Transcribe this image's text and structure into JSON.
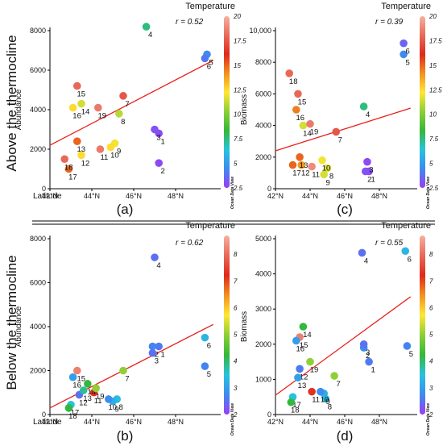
{
  "row_labels": {
    "top": "Above the thermocline",
    "bottom": "Below the thermocline"
  },
  "colors": {
    "regression_line": "#e8211b",
    "colormap_stops": [
      "#9b3df5",
      "#3d8af0",
      "#27c3dd",
      "#34b837",
      "#8ccf36",
      "#ffe733",
      "#f2901f",
      "#df2a1a",
      "#e86a5a",
      "#f5b1a0"
    ]
  },
  "watermark": "Ocean Data View",
  "chart_data": [
    {
      "id": "a",
      "type": "scatter",
      "panel_letter": "(a)",
      "xlabel": "Latitude",
      "ylabel": "Abundance",
      "xlim": [
        42,
        50
      ],
      "ylim": [
        0,
        8000
      ],
      "xticks": [
        {
          "v": 42,
          "label": "42°N"
        },
        {
          "v": 44,
          "label": "44°N"
        },
        {
          "v": 46,
          "label": "46°N"
        },
        {
          "v": 48,
          "label": "48°N"
        }
      ],
      "yticks": [
        {
          "v": 0,
          "label": "0"
        },
        {
          "v": 2000,
          "label": "2000"
        },
        {
          "v": 4000,
          "label": "4000"
        },
        {
          "v": 6000,
          "label": "6000"
        },
        {
          "v": 8000,
          "label": "8000"
        }
      ],
      "r_text": "r = 0.52",
      "trend": {
        "x": [
          42,
          49.8
        ],
        "y": [
          2200,
          6500
        ]
      },
      "colorbar": {
        "title": "Temperature",
        "min": 2.5,
        "max": 20,
        "ticks": [
          {
            "v": 20,
            "label": "20"
          },
          {
            "v": 17.5,
            "label": "17.5"
          },
          {
            "v": 15,
            "label": "15"
          },
          {
            "v": 12.5,
            "label": "12.5"
          },
          {
            "v": 10,
            "label": "10"
          },
          {
            "v": 7.5,
            "label": "7.5"
          },
          {
            "v": 5,
            "label": "5"
          },
          {
            "v": 2.5,
            "label": "2.5"
          }
        ]
      },
      "points": [
        {
          "label": "1",
          "x": 47.2,
          "y": 2800,
          "t": 2.8
        },
        {
          "label": "2",
          "x": 47.2,
          "y": 1300,
          "t": 2.8
        },
        {
          "label": "3",
          "x": 47.0,
          "y": 3000,
          "t": 3.0
        },
        {
          "label": "4",
          "x": 46.6,
          "y": 8200,
          "t": 7.5
        },
        {
          "label": "5",
          "x": 49.5,
          "y": 6800,
          "t": 4.5
        },
        {
          "label": "6",
          "x": 49.4,
          "y": 6600,
          "t": 4.0
        },
        {
          "label": "7",
          "x": 45.5,
          "y": 4700,
          "t": 17.5
        },
        {
          "label": "8",
          "x": 45.3,
          "y": 3800,
          "t": 11.0
        },
        {
          "label": "9",
          "x": 45.1,
          "y": 2300,
          "t": 12.0
        },
        {
          "label": "10",
          "x": 44.9,
          "y": 2100,
          "t": 12.5
        },
        {
          "label": "11",
          "x": 44.4,
          "y": 2000,
          "t": 18.5
        },
        {
          "label": "12",
          "x": 43.5,
          "y": 1700,
          "t": 12.5
        },
        {
          "label": "13",
          "x": 43.3,
          "y": 2400,
          "t": 15.0
        },
        {
          "label": "14",
          "x": 43.5,
          "y": 4300,
          "t": 11.5
        },
        {
          "label": "15",
          "x": 43.3,
          "y": 5200,
          "t": 18.0
        },
        {
          "label": "16",
          "x": 43.1,
          "y": 4100,
          "t": 12.5
        },
        {
          "label": "17",
          "x": 42.9,
          "y": 1000,
          "t": 15.0
        },
        {
          "label": "18",
          "x": 42.7,
          "y": 1500,
          "t": 18.0
        },
        {
          "label": "19",
          "x": 44.3,
          "y": 4100,
          "t": 18.5
        }
      ]
    },
    {
      "id": "c",
      "type": "scatter",
      "panel_letter": "(c)",
      "xlabel": "",
      "ylabel": "Biomass",
      "xlim": [
        42,
        50
      ],
      "ylim": [
        0,
        10000
      ],
      "xticks": [
        {
          "v": 42,
          "label": "42°N"
        },
        {
          "v": 44,
          "label": "44°N"
        },
        {
          "v": 46,
          "label": "46°N"
        },
        {
          "v": 48,
          "label": "48°N"
        }
      ],
      "yticks": [
        {
          "v": 0,
          "label": "0"
        },
        {
          "v": 2000,
          "label": "2000"
        },
        {
          "v": 4000,
          "label": "4000"
        },
        {
          "v": 6000,
          "label": "6000"
        },
        {
          "v": 8000,
          "label": "8000"
        },
        {
          "v": 10000,
          "label": "10,000"
        }
      ],
      "r_text": "r = 0.39",
      "trend": {
        "x": [
          42,
          49.8
        ],
        "y": [
          2400,
          5100
        ]
      },
      "colorbar": {
        "title": "Temperature",
        "min": 2.5,
        "max": 20,
        "ticks": [
          {
            "v": 20,
            "label": "20"
          },
          {
            "v": 17.5,
            "label": "17.5"
          },
          {
            "v": 15,
            "label": "15"
          },
          {
            "v": 12.5,
            "label": "12.5"
          },
          {
            "v": 10,
            "label": "10"
          },
          {
            "v": 7.5,
            "label": "7.5"
          },
          {
            "v": 5,
            "label": "5"
          },
          {
            "v": 2.5,
            "label": "2.5"
          }
        ]
      },
      "points": [
        {
          "label": "1",
          "x": 47.4,
          "y": 1100,
          "t": 2.8
        },
        {
          "label": "2",
          "x": 47.2,
          "y": 1100,
          "t": 3.0
        },
        {
          "label": "3",
          "x": 47.3,
          "y": 1700,
          "t": 2.8
        },
        {
          "label": "4",
          "x": 47.1,
          "y": 5200,
          "t": 7.5
        },
        {
          "label": "5",
          "x": 49.4,
          "y": 8500,
          "t": 4.5
        },
        {
          "label": "6",
          "x": 49.4,
          "y": 9200,
          "t": 3.5
        },
        {
          "label": "7",
          "x": 45.5,
          "y": 3600,
          "t": 17.5
        },
        {
          "label": "8",
          "x": 45.0,
          "y": 1300,
          "t": 11.5
        },
        {
          "label": "9",
          "x": 44.8,
          "y": 900,
          "t": 11.5
        },
        {
          "label": "10",
          "x": 44.7,
          "y": 1800,
          "t": 12.0
        },
        {
          "label": "11",
          "x": 44.1,
          "y": 1400,
          "t": 19.0
        },
        {
          "label": "12",
          "x": 43.5,
          "y": 1500,
          "t": 14.0
        },
        {
          "label": "13",
          "x": 43.4,
          "y": 2000,
          "t": 15.0
        },
        {
          "label": "14",
          "x": 43.6,
          "y": 4000,
          "t": 11.5
        },
        {
          "label": "15",
          "x": 43.3,
          "y": 6000,
          "t": 18.0
        },
        {
          "label": "16",
          "x": 43.2,
          "y": 5000,
          "t": 14.5
        },
        {
          "label": "17",
          "x": 43.0,
          "y": 1500,
          "t": 15.0
        },
        {
          "label": "18",
          "x": 42.8,
          "y": 7300,
          "t": 18.0
        },
        {
          "label": "19",
          "x": 44.0,
          "y": 4100,
          "t": 18.5
        }
      ]
    },
    {
      "id": "b",
      "type": "scatter",
      "panel_letter": "(b)",
      "xlabel": "Latitude",
      "ylabel": "Abundance",
      "xlim": [
        42,
        50
      ],
      "ylim": [
        0,
        8000
      ],
      "xticks": [
        {
          "v": 42,
          "label": "42°N"
        },
        {
          "v": 44,
          "label": "44°N"
        },
        {
          "v": 46,
          "label": "46°N"
        },
        {
          "v": 48,
          "label": "48°N"
        }
      ],
      "yticks": [
        {
          "v": 0,
          "label": "0"
        },
        {
          "v": 2000,
          "label": "2000"
        },
        {
          "v": 4000,
          "label": "4000"
        },
        {
          "v": 6000,
          "label": "6000"
        },
        {
          "v": 8000,
          "label": "8000"
        }
      ],
      "r_text": "r = 0.62",
      "trend": {
        "x": [
          42,
          49.8
        ],
        "y": [
          300,
          4100
        ]
      },
      "colorbar": {
        "title": "Temperature",
        "min": 2,
        "max": 8.7,
        "ticks": [
          {
            "v": 8,
            "label": "8"
          },
          {
            "v": 7,
            "label": "7"
          },
          {
            "v": 6,
            "label": "6"
          },
          {
            "v": 5,
            "label": "5"
          },
          {
            "v": 4,
            "label": "4"
          },
          {
            "v": 3,
            "label": "3"
          },
          {
            "v": 2,
            "label": "2"
          }
        ]
      },
      "points": [
        {
          "label": "1",
          "x": 47.2,
          "y": 3100,
          "t": 2.6
        },
        {
          "label": "2",
          "x": 46.9,
          "y": 3100,
          "t": 2.7
        },
        {
          "label": "3",
          "x": 46.9,
          "y": 2800,
          "t": 2.5
        },
        {
          "label": "4",
          "x": 47.0,
          "y": 7150,
          "t": 2.5
        },
        {
          "label": "5",
          "x": 49.4,
          "y": 2200,
          "t": 2.7
        },
        {
          "label": "6",
          "x": 49.4,
          "y": 3500,
          "t": 3.3
        },
        {
          "label": "7",
          "x": 45.5,
          "y": 2000,
          "t": 5.0
        },
        {
          "label": "8",
          "x": 45.2,
          "y": 700,
          "t": 3.4
        },
        {
          "label": "9",
          "x": 45.0,
          "y": 600,
          "t": 3.2
        },
        {
          "label": "10",
          "x": 44.8,
          "y": 700,
          "t": 2.8
        },
        {
          "label": "11",
          "x": 44.1,
          "y": 1000,
          "t": 7.3
        },
        {
          "label": "12",
          "x": 43.4,
          "y": 900,
          "t": 2.5
        },
        {
          "label": "13",
          "x": 43.6,
          "y": 1100,
          "t": 3.8
        },
        {
          "label": "14",
          "x": 43.8,
          "y": 1400,
          "t": 4.2
        },
        {
          "label": "15",
          "x": 43.3,
          "y": 2000,
          "t": 8.2
        },
        {
          "label": "16",
          "x": 43.1,
          "y": 1700,
          "t": 3.0
        },
        {
          "label": "17",
          "x": 43.0,
          "y": 450,
          "t": 3.5
        },
        {
          "label": "18",
          "x": 42.9,
          "y": 300,
          "t": 4.2
        },
        {
          "label": "19",
          "x": 44.2,
          "y": 1200,
          "t": 5.0
        }
      ]
    },
    {
      "id": "d",
      "type": "scatter",
      "panel_letter": "(d)",
      "xlabel": "",
      "ylabel": "Biomass",
      "xlim": [
        42,
        50
      ],
      "ylim": [
        0,
        5000
      ],
      "xticks": [
        {
          "v": 42,
          "label": "42°N"
        },
        {
          "v": 44,
          "label": "44°N"
        },
        {
          "v": 46,
          "label": "46°N"
        },
        {
          "v": 48,
          "label": "48°N"
        }
      ],
      "yticks": [
        {
          "v": 0,
          "label": "0"
        },
        {
          "v": 1000,
          "label": "1000"
        },
        {
          "v": 2000,
          "label": "2000"
        },
        {
          "v": 3000,
          "label": "3000"
        },
        {
          "v": 4000,
          "label": "4000"
        },
        {
          "v": 5000,
          "label": "5000"
        }
      ],
      "r_text": "r = 0.55",
      "trend": {
        "x": [
          42,
          49.8
        ],
        "y": [
          550,
          3350
        ]
      },
      "colorbar": {
        "title": "Temperature",
        "min": 2,
        "max": 8.7,
        "ticks": [
          {
            "v": 8,
            "label": "8"
          },
          {
            "v": 7,
            "label": "7"
          },
          {
            "v": 6,
            "label": "6"
          },
          {
            "v": 5,
            "label": "5"
          },
          {
            "v": 4,
            "label": "4"
          },
          {
            "v": 3,
            "label": "3"
          },
          {
            "v": 2,
            "label": "2"
          }
        ]
      },
      "points": [
        {
          "label": "1",
          "x": 47.4,
          "y": 1500,
          "t": 2.6
        },
        {
          "label": "2",
          "x": 47.1,
          "y": 1900,
          "t": 2.8
        },
        {
          "label": "3",
          "x": 47.1,
          "y": 2000,
          "t": 2.5
        },
        {
          "label": "4",
          "x": 47.0,
          "y": 4600,
          "t": 2.5
        },
        {
          "label": "5",
          "x": 49.6,
          "y": 1950,
          "t": 2.7
        },
        {
          "label": "6",
          "x": 49.5,
          "y": 4650,
          "t": 3.3
        },
        {
          "label": "7",
          "x": 45.4,
          "y": 1100,
          "t": 5.0
        },
        {
          "label": "8",
          "x": 44.9,
          "y": 450,
          "t": 3.4
        },
        {
          "label": "9",
          "x": 44.8,
          "y": 600,
          "t": 3.2
        },
        {
          "label": "10",
          "x": 44.6,
          "y": 650,
          "t": 2.8
        },
        {
          "label": "11",
          "x": 44.1,
          "y": 650,
          "t": 7.3
        },
        {
          "label": "12",
          "x": 43.4,
          "y": 1300,
          "t": 2.6
        },
        {
          "label": "13",
          "x": 43.3,
          "y": 1050,
          "t": 3.0
        },
        {
          "label": "14",
          "x": 43.6,
          "y": 2500,
          "t": 4.2
        },
        {
          "label": "15",
          "x": 43.4,
          "y": 2200,
          "t": 8.2
        },
        {
          "label": "16",
          "x": 43.2,
          "y": 2100,
          "t": 3.0
        },
        {
          "label": "17",
          "x": 43.0,
          "y": 500,
          "t": 3.5
        },
        {
          "label": "18",
          "x": 42.9,
          "y": 350,
          "t": 4.2
        },
        {
          "label": "19",
          "x": 44.0,
          "y": 1500,
          "t": 5.0
        }
      ]
    }
  ]
}
